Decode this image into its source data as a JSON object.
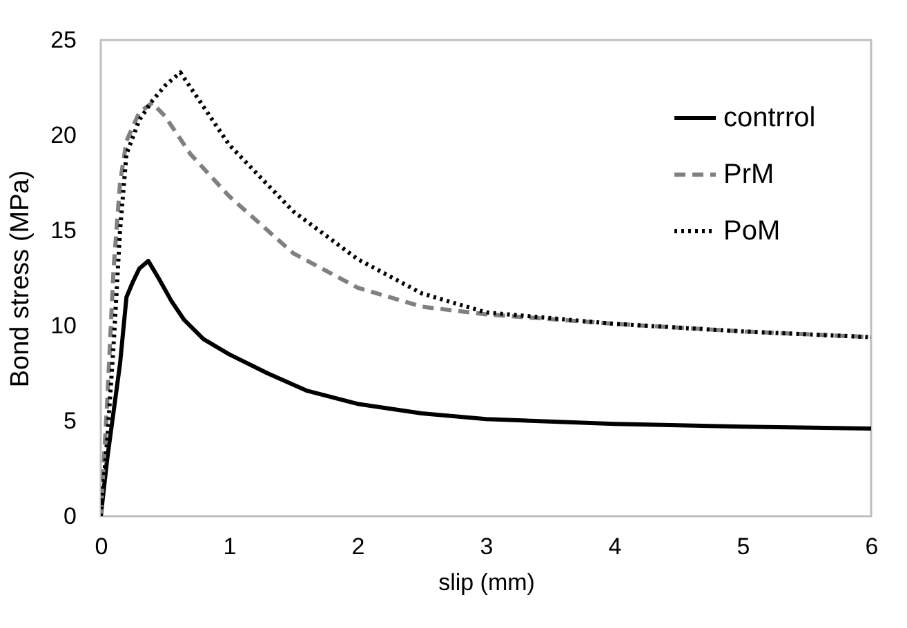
{
  "chart_data": {
    "type": "line",
    "xlabel": "slip (mm)",
    "ylabel": "Bond stress (MPa)",
    "xlim": [
      0,
      6
    ],
    "ylim": [
      0,
      25
    ],
    "xticks": [
      0,
      1,
      2,
      3,
      4,
      5,
      6
    ],
    "yticks": [
      0,
      5,
      10,
      15,
      20,
      25
    ],
    "grid": false,
    "legend": "top right",
    "marker": "none",
    "series": [
      {
        "name": "contrrol",
        "color": "#000000",
        "line_style": "solid",
        "x": [
          0,
          0.05,
          0.1,
          0.15,
          0.2,
          0.25,
          0.3,
          0.37,
          0.45,
          0.55,
          0.65,
          0.8,
          1,
          1.3,
          1.6,
          2,
          2.5,
          3,
          4,
          5,
          6
        ],
        "values": [
          0,
          3,
          5.5,
          8,
          11.5,
          12.3,
          13,
          13.4,
          12.5,
          11.3,
          10.3,
          9.3,
          8.5,
          7.5,
          6.6,
          5.9,
          5.4,
          5.1,
          4.85,
          4.7,
          4.6
        ]
      },
      {
        "name": "PrM",
        "color": "#808080",
        "line_style": "dashed",
        "x": [
          0,
          0.05,
          0.1,
          0.15,
          0.2,
          0.3,
          0.4,
          0.5,
          0.7,
          1,
          1.5,
          2,
          2.5,
          3,
          4,
          5,
          6
        ],
        "values": [
          0,
          6,
          13,
          17.5,
          19.7,
          21.2,
          21.7,
          21,
          19,
          16.8,
          13.8,
          12,
          11,
          10.6,
          10.1,
          9.7,
          9.4
        ]
      },
      {
        "name": "PoM",
        "color": "#000000",
        "line_style": "dotted",
        "x": [
          0,
          0.05,
          0.1,
          0.15,
          0.2,
          0.3,
          0.4,
          0.5,
          0.62,
          0.8,
          1,
          1.5,
          2,
          2.5,
          3,
          4,
          5,
          6
        ],
        "values": [
          0,
          4,
          9,
          15,
          19,
          20.8,
          21.8,
          22.6,
          23.3,
          21.5,
          19.5,
          16,
          13.5,
          11.7,
          10.7,
          10.1,
          9.7,
          9.4
        ]
      }
    ]
  }
}
